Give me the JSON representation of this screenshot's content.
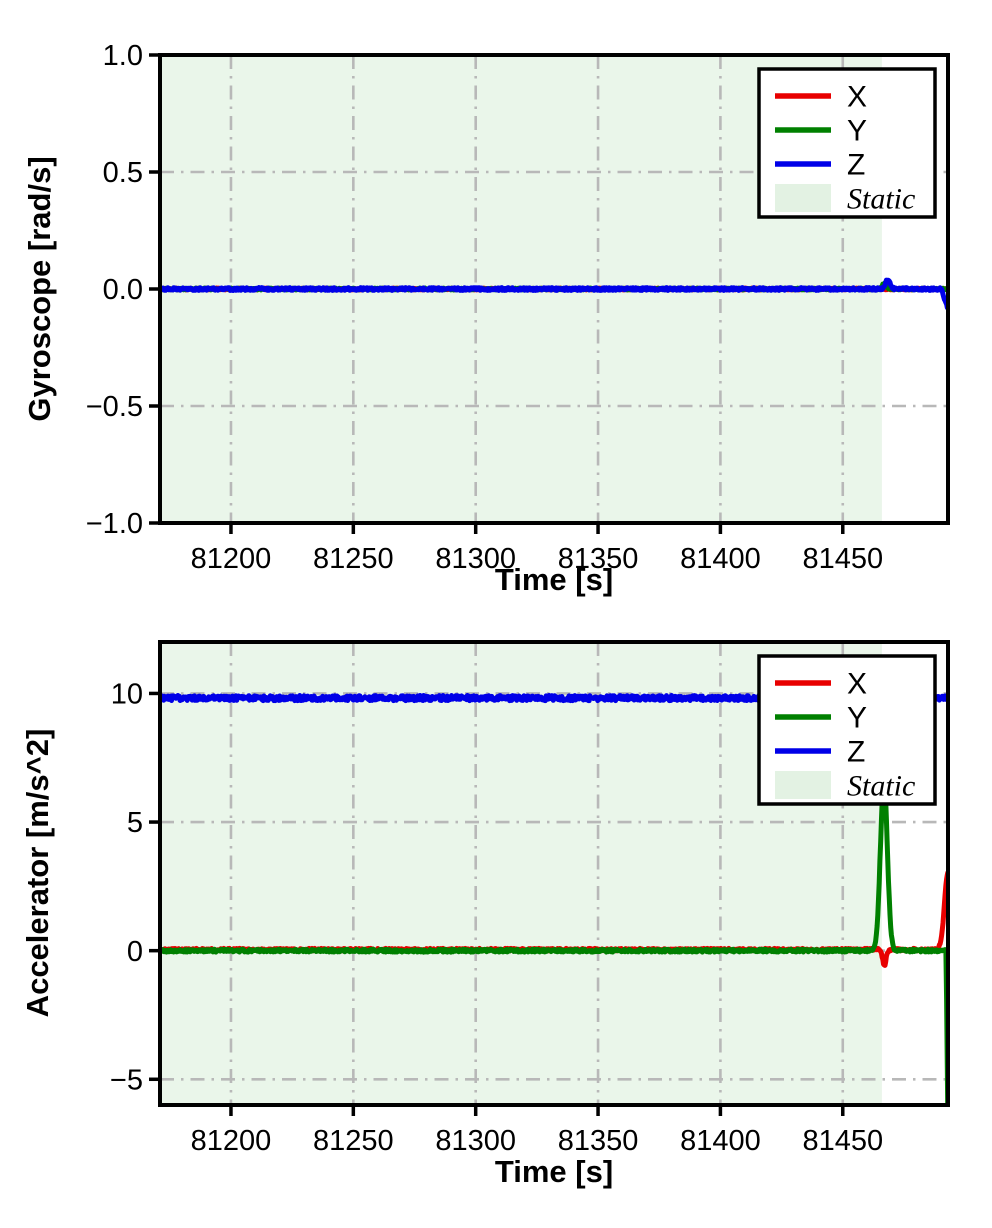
{
  "figure": {
    "background": "#ffffff",
    "text_color": "#000000",
    "spine_color": "#000000",
    "grid_color": "#b8b8b8",
    "static_fill": "#eaf6ea",
    "legend_patch_fill": "#e3f2e3",
    "accent_colors": {
      "x": "#e80000",
      "y": "#008000",
      "z": "#0000e8"
    }
  },
  "chart_data": [
    {
      "type": "line",
      "title": "",
      "xlabel": "Time [s]",
      "ylabel": "Gyroscope [rad/s]",
      "xlim": [
        81171,
        81493
      ],
      "ylim": [
        -1.0,
        1.0
      ],
      "grid": "dash-dot",
      "xticks": {
        "values": [
          81200,
          81250,
          81300,
          81350,
          81400,
          81450
        ],
        "labels": [
          "81200",
          "81250",
          "81300",
          "81350",
          "81400",
          "81450"
        ]
      },
      "yticks": {
        "values": [
          1.0,
          0.5,
          0.0,
          -0.5,
          -1.0
        ],
        "labels": [
          "1.0",
          "0.5",
          "0.0",
          "−0.5",
          "−1.0"
        ]
      },
      "static_region": {
        "start": 81171,
        "end": 81466,
        "label": "Static"
      },
      "series": [
        {
          "name": "X",
          "color": "#e80000",
          "baseline": 0.0,
          "noise": 0.004,
          "spikes": []
        },
        {
          "name": "Y",
          "color": "#008000",
          "baseline": 0.0,
          "noise": 0.004,
          "spikes": [
            {
              "t": 81467.0,
              "peak": 0.025,
              "width": 1.2
            }
          ]
        },
        {
          "name": "Z",
          "color": "#0000e8",
          "baseline": 0.0,
          "noise": 0.006,
          "spikes": [
            {
              "t": 81468.3,
              "peak": 0.038,
              "width": 1.4
            }
          ],
          "ramp": {
            "t": 81490.3,
            "slope": -0.033
          }
        }
      ],
      "legend": {
        "position": "upper right",
        "entries": [
          {
            "label": "X",
            "swatch": "line",
            "color": "#e80000",
            "italic": false
          },
          {
            "label": "Y",
            "swatch": "line",
            "color": "#008000",
            "italic": false
          },
          {
            "label": "Z",
            "swatch": "line",
            "color": "#0000e8",
            "italic": false
          },
          {
            "label": "Static",
            "swatch": "patch",
            "color": "#e3f2e3",
            "italic": true
          }
        ]
      }
    },
    {
      "type": "line",
      "title": "",
      "xlabel": "Time [s]",
      "ylabel": "Accelerator [m/s^2]",
      "xlim": [
        81171,
        81493
      ],
      "ylim": [
        -6.0,
        12.0
      ],
      "grid": "dash-dot",
      "xticks": {
        "values": [
          81200,
          81250,
          81300,
          81350,
          81400,
          81450
        ],
        "labels": [
          "81200",
          "81250",
          "81300",
          "81350",
          "81400",
          "81450"
        ]
      },
      "yticks": {
        "values": [
          10,
          5,
          0,
          -5
        ],
        "labels": [
          "10",
          "5",
          "0",
          "−5"
        ]
      },
      "static_region": {
        "start": 81171,
        "end": 81466,
        "label": "Static"
      },
      "series": [
        {
          "name": "X",
          "color": "#e80000",
          "baseline": 0.04,
          "noise": 0.05,
          "spikes": [
            {
              "t": 81467.0,
              "peak": -0.6,
              "width": 1.0
            },
            {
              "t": 81493.0,
              "peak": 3.0,
              "width": 2.0
            }
          ]
        },
        {
          "name": "Y",
          "color": "#008000",
          "baseline": 0.0,
          "noise": 0.055,
          "spikes": [
            {
              "t": 81466.8,
              "peak": 6.6,
              "width": 2.0
            }
          ],
          "ramp": {
            "t": 81492.2,
            "slope": -9.0
          }
        },
        {
          "name": "Z",
          "color": "#0000e8",
          "baseline": 9.82,
          "noise": 0.1,
          "spikes": [
            {
              "t": 81468.3,
              "peak": 0.3,
              "width": 1.5
            }
          ]
        }
      ],
      "legend": {
        "position": "upper right",
        "entries": [
          {
            "label": "X",
            "swatch": "line",
            "color": "#e80000",
            "italic": false
          },
          {
            "label": "Y",
            "swatch": "line",
            "color": "#008000",
            "italic": false
          },
          {
            "label": "Z",
            "swatch": "line",
            "color": "#0000e8",
            "italic": false
          },
          {
            "label": "Static",
            "swatch": "patch",
            "color": "#e3f2e3",
            "italic": true
          }
        ]
      }
    }
  ]
}
